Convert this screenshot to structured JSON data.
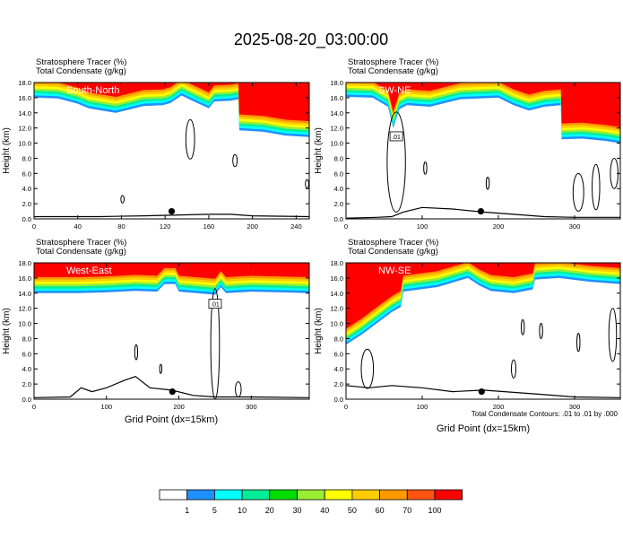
{
  "figure": {
    "title": "2025-08-20_03:00:00",
    "contour_note": "Total Condensate Contours: .01 to .01 by .000",
    "xlabel": "Grid Point (dx=15km)"
  },
  "colors": {
    "levels": [
      "#ffffff",
      "#1e90ff",
      "#00ffff",
      "#00ee99",
      "#00dd00",
      "#99ee33",
      "#ffff00",
      "#ffcc00",
      "#ff9900",
      "#ff5511",
      "#ff0000"
    ],
    "contour": "#000000"
  },
  "colorbar": {
    "labels": [
      "1",
      "5",
      "10",
      "20",
      "30",
      "40",
      "50",
      "60",
      "70",
      "100"
    ]
  },
  "chart_data": [
    {
      "type": "heatmap",
      "panel": "South-North",
      "header_line1": "Stratosphere Tracer   (%)",
      "header_line2": "Total Condensate   (g/kg)",
      "ylabel": "Height (km)",
      "xlim": [
        0,
        252
      ],
      "ylim": [
        0,
        18
      ],
      "xticks": [
        "0",
        "40",
        "80",
        "120",
        "160",
        "200",
        "240"
      ],
      "yticks": [
        "0.0",
        "2.0",
        "4.0",
        "6.0",
        "8.0",
        "10.0",
        "12.0",
        "14.0",
        "16.0",
        "18.0"
      ],
      "tracer_base_km": [
        [
          0,
          16.0
        ],
        [
          22,
          15.9
        ],
        [
          40,
          15.2
        ],
        [
          50,
          14.6
        ],
        [
          75,
          14.0
        ],
        [
          100,
          14.9
        ],
        [
          118,
          15.0
        ],
        [
          125,
          15.3
        ],
        [
          135,
          16.3
        ],
        [
          142,
          15.8
        ],
        [
          160,
          14.6
        ],
        [
          165,
          15.5
        ],
        [
          180,
          15.6
        ],
        [
          187,
          15.8
        ],
        [
          188,
          11.7
        ],
        [
          210,
          11.5
        ],
        [
          230,
          11.0
        ],
        [
          252,
          10.8
        ]
      ],
      "terrain_km": [
        [
          0,
          0.3
        ],
        [
          60,
          0.3
        ],
        [
          100,
          0.4
        ],
        [
          160,
          0.6
        ],
        [
          180,
          0.6
        ],
        [
          200,
          0.4
        ],
        [
          252,
          0.3
        ]
      ],
      "site_marker": {
        "x": 126,
        "y": 1.0
      }
    },
    {
      "type": "heatmap",
      "panel": "SW-NE",
      "header_line1": "Stratosphere Tracer   (%)",
      "header_line2": "Total Condensate   (g/kg)",
      "ylabel": "Height (km)",
      "xlim": [
        0,
        360
      ],
      "ylim": [
        0,
        18
      ],
      "xticks": [
        "0",
        "100",
        "200",
        "300"
      ],
      "yticks": [
        "0.0",
        "2.0",
        "4.0",
        "6.0",
        "8.0",
        "10.0",
        "12.0",
        "14.0",
        "16.0",
        "18.0"
      ],
      "tracer_base_km": [
        [
          0,
          16.1
        ],
        [
          35,
          16.0
        ],
        [
          55,
          14.8
        ],
        [
          62,
          12.0
        ],
        [
          70,
          14.5
        ],
        [
          80,
          15.0
        ],
        [
          110,
          14.8
        ],
        [
          150,
          15.8
        ],
        [
          200,
          16.0
        ],
        [
          220,
          15.0
        ],
        [
          240,
          14.3
        ],
        [
          260,
          14.8
        ],
        [
          282,
          15.0
        ],
        [
          283,
          10.5
        ],
        [
          310,
          10.6
        ],
        [
          340,
          10.3
        ],
        [
          360,
          10.0
        ]
      ],
      "terrain_km": [
        [
          0,
          0.1
        ],
        [
          40,
          0.2
        ],
        [
          60,
          0.3
        ],
        [
          75,
          0.9
        ],
        [
          100,
          1.5
        ],
        [
          140,
          1.3
        ],
        [
          180,
          0.9
        ],
        [
          220,
          0.6
        ],
        [
          260,
          0.3
        ],
        [
          300,
          0.2
        ],
        [
          360,
          0.2
        ]
      ],
      "contour_label": ".01",
      "site_marker": {
        "x": 177,
        "y": 1.0
      }
    },
    {
      "type": "heatmap",
      "panel": "West-East",
      "header_line1": "Stratosphere Tracer   (%)",
      "header_line2": "Total Condensate   (g/kg)",
      "ylabel": "Height (km)",
      "xlim": [
        0,
        380
      ],
      "ylim": [
        0,
        18
      ],
      "xticks": [
        "0",
        "100",
        "200",
        "300"
      ],
      "yticks": [
        "0.0",
        "2.0",
        "4.0",
        "6.0",
        "8.0",
        "10.0",
        "12.0",
        "14.0",
        "16.0",
        "18.0"
      ],
      "tracer_base_km": [
        [
          0,
          14.0
        ],
        [
          60,
          14.0
        ],
        [
          100,
          14.1
        ],
        [
          140,
          14.3
        ],
        [
          170,
          14.2
        ],
        [
          180,
          15.2
        ],
        [
          195,
          15.2
        ],
        [
          200,
          14.2
        ],
        [
          250,
          13.8
        ],
        [
          258,
          14.8
        ],
        [
          265,
          14.0
        ],
        [
          300,
          14.2
        ],
        [
          340,
          14.1
        ],
        [
          380,
          14.0
        ]
      ],
      "terrain_km": [
        [
          0,
          0.2
        ],
        [
          50,
          0.3
        ],
        [
          65,
          1.5
        ],
        [
          80,
          1.0
        ],
        [
          100,
          1.5
        ],
        [
          125,
          2.5
        ],
        [
          140,
          3.0
        ],
        [
          160,
          1.5
        ],
        [
          190,
          1.2
        ],
        [
          220,
          0.5
        ],
        [
          250,
          0.3
        ],
        [
          300,
          0.3
        ],
        [
          380,
          0.2
        ]
      ],
      "contour_label": ".01",
      "site_marker": {
        "x": 191,
        "y": 1.0
      }
    },
    {
      "type": "heatmap",
      "panel": "NW-SE",
      "header_line1": "Stratosphere Tracer   (%)",
      "header_line2": "Total Condensate   (g/kg)",
      "ylabel": "Height (km)",
      "xlim": [
        0,
        360
      ],
      "ylim": [
        0,
        18
      ],
      "xticks": [
        "0",
        "100",
        "200",
        "300"
      ],
      "yticks": [
        "0.0",
        "2.0",
        "4.0",
        "6.0",
        "8.0",
        "10.0",
        "12.0",
        "14.0",
        "16.0",
        "18.0"
      ],
      "tracer_base_km": [
        [
          0,
          7.2
        ],
        [
          20,
          8.5
        ],
        [
          40,
          10.0
        ],
        [
          60,
          11.5
        ],
        [
          72,
          12.2
        ],
        [
          75,
          14.2
        ],
        [
          120,
          14.8
        ],
        [
          160,
          16.0
        ],
        [
          175,
          15.0
        ],
        [
          190,
          14.3
        ],
        [
          220,
          14.0
        ],
        [
          245,
          14.5
        ],
        [
          248,
          15.8
        ],
        [
          280,
          16.0
        ],
        [
          320,
          15.5
        ],
        [
          360,
          15.2
        ]
      ],
      "terrain_km": [
        [
          0,
          1.8
        ],
        [
          30,
          1.5
        ],
        [
          60,
          1.8
        ],
        [
          100,
          1.5
        ],
        [
          140,
          1.0
        ],
        [
          180,
          1.2
        ],
        [
          220,
          0.9
        ],
        [
          260,
          0.6
        ],
        [
          300,
          0.3
        ],
        [
          360,
          0.2
        ]
      ],
      "site_marker": {
        "x": 178,
        "y": 1.0
      }
    }
  ]
}
